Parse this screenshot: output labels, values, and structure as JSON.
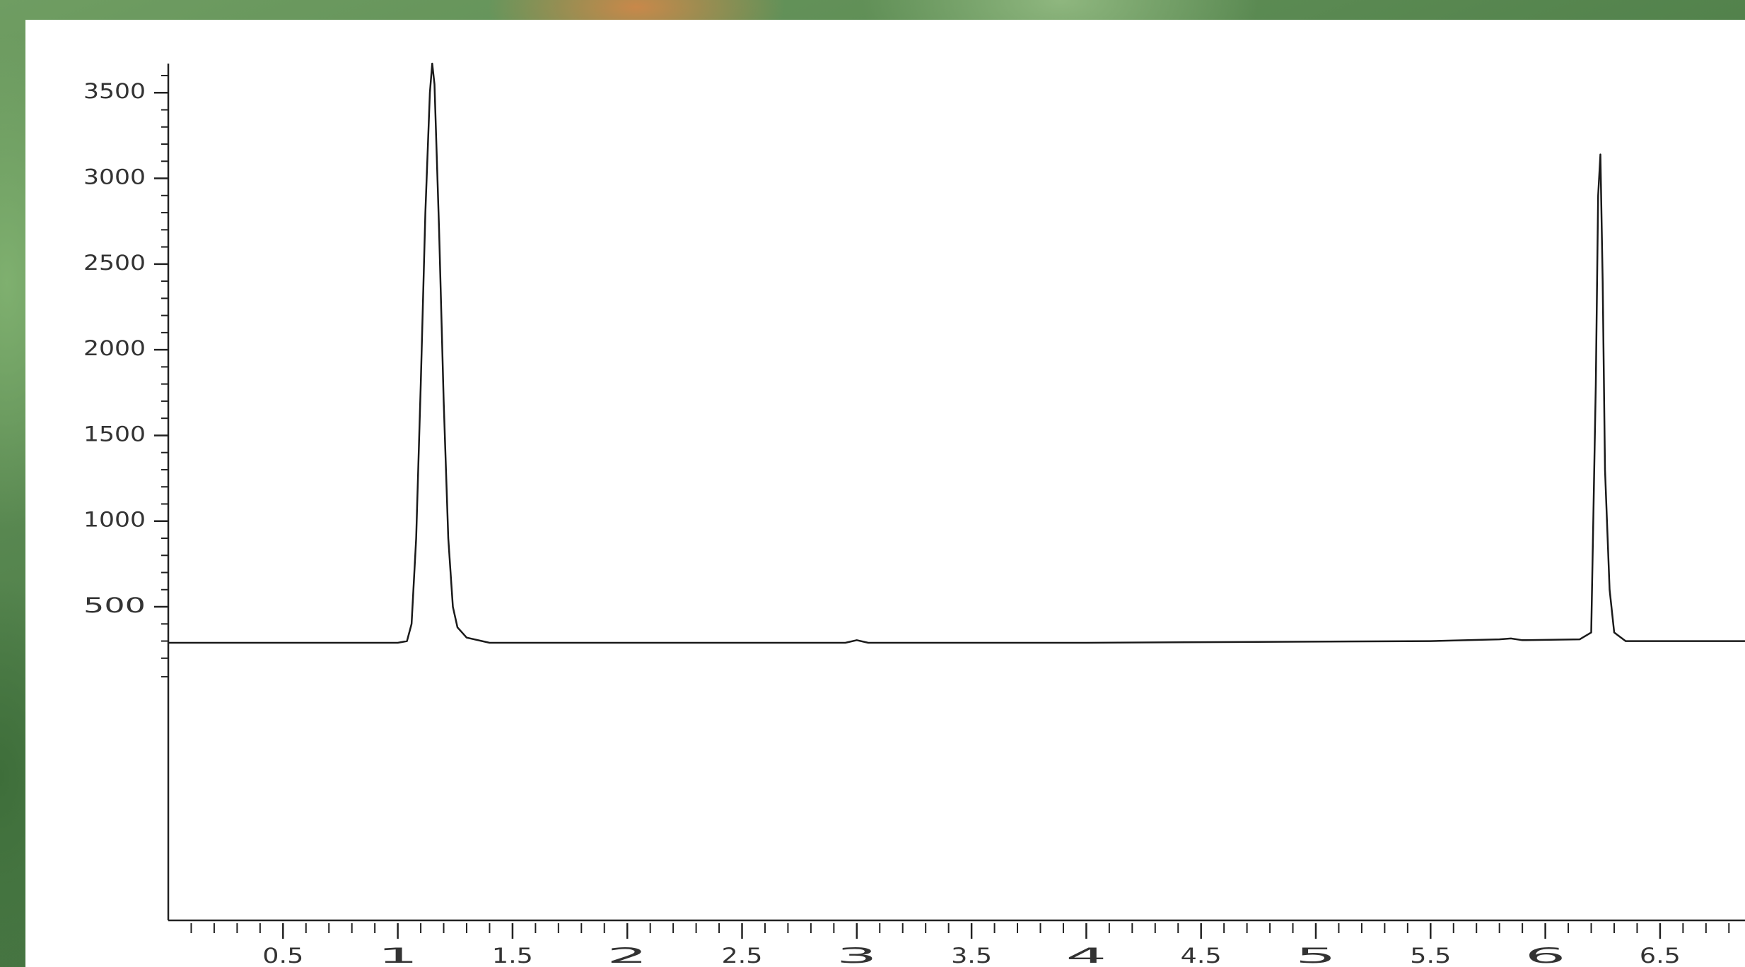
{
  "chart_data": {
    "type": "line",
    "x": [
      0,
      0.5,
      1.0,
      1.04,
      1.06,
      1.08,
      1.1,
      1.12,
      1.14,
      1.15,
      1.16,
      1.18,
      1.2,
      1.22,
      1.24,
      1.26,
      1.3,
      1.4,
      2.0,
      2.95,
      3.0,
      3.05,
      4.0,
      5.5,
      5.8,
      5.85,
      5.9,
      6.15,
      6.2,
      6.22,
      6.23,
      6.24,
      6.25,
      6.26,
      6.28,
      6.3,
      6.35,
      6.5,
      6.87
    ],
    "values": [
      290,
      290,
      290,
      300,
      400,
      900,
      1800,
      2800,
      3500,
      3670,
      3550,
      2700,
      1700,
      900,
      500,
      380,
      320,
      290,
      290,
      290,
      305,
      290,
      290,
      300,
      310,
      315,
      305,
      310,
      350,
      1800,
      2900,
      3140,
      2400,
      1300,
      600,
      350,
      300,
      300,
      300
    ],
    "color": "#1a1a1a",
    "xlim": [
      0,
      6.87
    ],
    "xticks": [
      0.5,
      1.0,
      1.5,
      2.0,
      2.5,
      3.0,
      3.5,
      4.0,
      4.5,
      5.0,
      5.5,
      6.0,
      6.5
    ],
    "ylim": [
      -1330,
      3670
    ],
    "yticks": [
      500,
      1000,
      1500,
      2000,
      2500,
      3000,
      3500
    ]
  }
}
